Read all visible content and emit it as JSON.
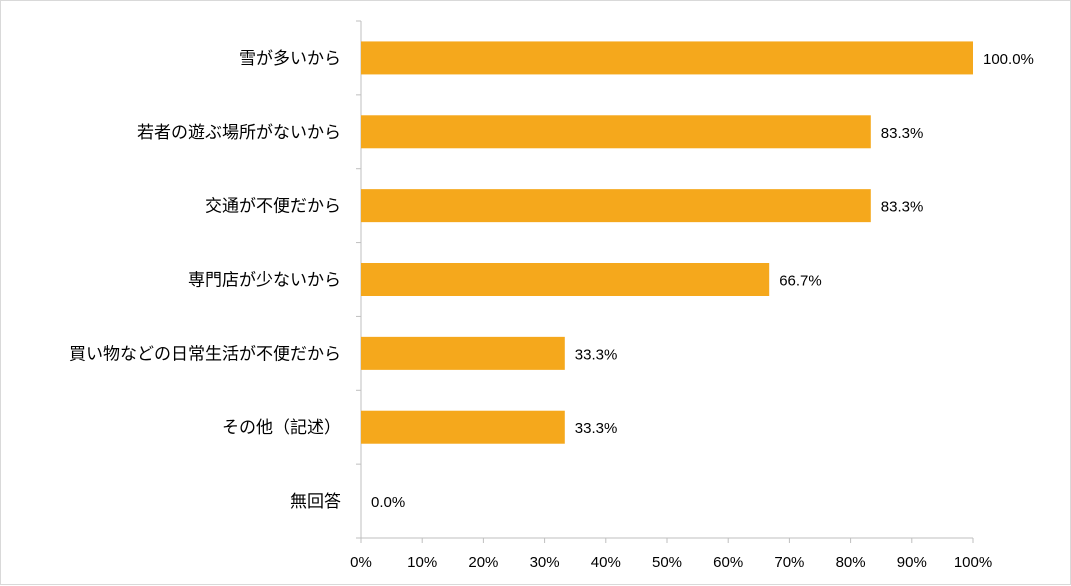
{
  "chart_data": {
    "type": "bar",
    "orientation": "horizontal",
    "title": "",
    "xlabel": "",
    "ylabel": "",
    "categories": [
      "雪が多いから",
      "若者の遊ぶ場所がないから",
      "交通が不便だから",
      "専門店が少ないから",
      "買い物などの日常生活が不便だから",
      "その他（記述）",
      "無回答"
    ],
    "values": [
      100.0,
      83.3,
      83.3,
      66.7,
      33.3,
      33.3,
      0.0
    ],
    "value_labels": [
      "100.0%",
      "83.3%",
      "83.3%",
      "66.7%",
      "33.3%",
      "33.3%",
      "0.0%"
    ],
    "xlim": [
      0,
      100
    ],
    "x_ticks": [
      0,
      10,
      20,
      30,
      40,
      50,
      60,
      70,
      80,
      90,
      100
    ],
    "x_tick_labels": [
      "0%",
      "10%",
      "20%",
      "30%",
      "40%",
      "50%",
      "60%",
      "70%",
      "80%",
      "90%",
      "100%"
    ],
    "bar_color": "#F5A81C",
    "grid": false,
    "legend": "none"
  }
}
